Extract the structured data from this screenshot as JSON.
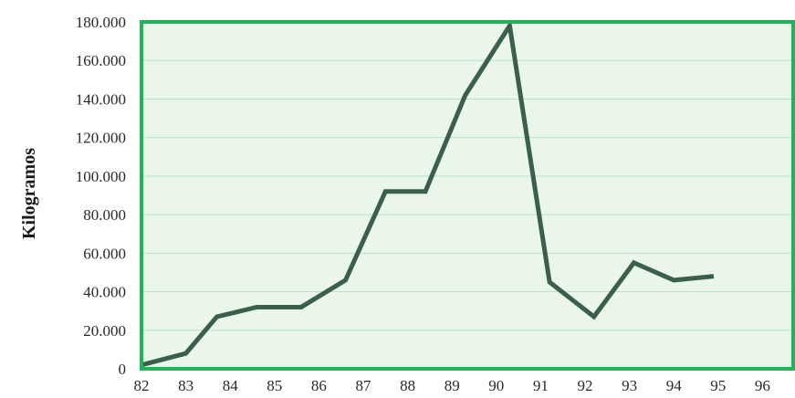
{
  "colors": {
    "plot_background": "#eaf6ea",
    "frame": "#1fb35a",
    "gridline": "#b9e2c4",
    "line": "#3a5f4a",
    "text": "#2a2a2a"
  },
  "chart_data": {
    "type": "line",
    "title": "",
    "xlabel": "",
    "ylabel": "Kilogramos",
    "categories": [
      "82",
      "83",
      "84",
      "85",
      "86",
      "87",
      "88",
      "89",
      "90",
      "91",
      "92",
      "93",
      "94",
      "95",
      "96"
    ],
    "x_tick_labels": [
      "82",
      "83",
      "84",
      "85",
      "86",
      "87",
      "88",
      "89",
      "90",
      "91",
      "92",
      "93",
      "94",
      "95",
      "96"
    ],
    "y_tick_labels": [
      "0",
      "20.000",
      "40.000",
      "60.000",
      "80.000",
      "100.000",
      "120.000",
      "140.000",
      "160.000",
      "180.000"
    ],
    "y_ticks": [
      0,
      20000,
      40000,
      60000,
      80000,
      100000,
      120000,
      140000,
      160000,
      180000
    ],
    "ylim": [
      0,
      180000
    ],
    "grid": true,
    "legend": "none",
    "series": [
      {
        "x": [
          82,
          83,
          83.7,
          84.6,
          85.6,
          86.6,
          87.5,
          88.4,
          89.3,
          90.3,
          91.2,
          92.2,
          93.1,
          94,
          94.9
        ],
        "values": [
          2000,
          8000,
          27000,
          32000,
          32000,
          46000,
          92000,
          92000,
          142000,
          178000,
          45000,
          27000,
          55000,
          46000,
          48000
        ]
      }
    ]
  }
}
